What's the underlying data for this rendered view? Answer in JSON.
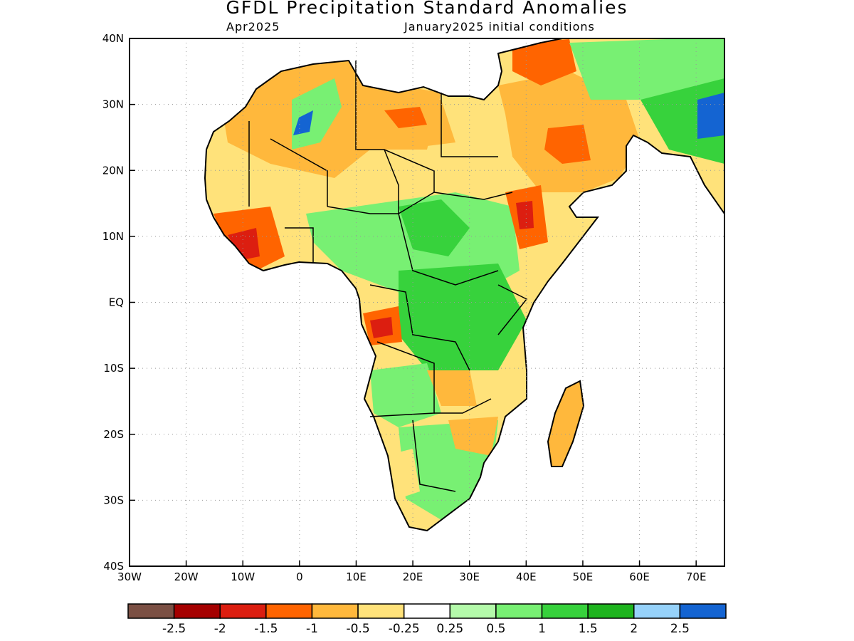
{
  "title": "GFDL Precipitation Standard Anomalies",
  "subtitle_left": "Apr2025",
  "subtitle_right": "January2025 initial conditions",
  "map": {
    "lon_range": [
      -30,
      75
    ],
    "lat_range": [
      -40,
      40
    ],
    "x_ticks": [
      {
        "lon": -30,
        "label": "30W"
      },
      {
        "lon": -20,
        "label": "20W"
      },
      {
        "lon": -10,
        "label": "10W"
      },
      {
        "lon": 0,
        "label": "0"
      },
      {
        "lon": 10,
        "label": "10E"
      },
      {
        "lon": 20,
        "label": "20E"
      },
      {
        "lon": 30,
        "label": "30E"
      },
      {
        "lon": 40,
        "label": "40E"
      },
      {
        "lon": 50,
        "label": "50E"
      },
      {
        "lon": 60,
        "label": "60E"
      },
      {
        "lon": 70,
        "label": "70E"
      }
    ],
    "y_ticks": [
      {
        "lat": 40,
        "label": "40N"
      },
      {
        "lat": 30,
        "label": "30N"
      },
      {
        "lat": 20,
        "label": "20N"
      },
      {
        "lat": 10,
        "label": "10N"
      },
      {
        "lat": 0,
        "label": "EQ"
      },
      {
        "lat": -10,
        "label": "10S"
      },
      {
        "lat": -20,
        "label": "20S"
      },
      {
        "lat": -30,
        "label": "30S"
      },
      {
        "lat": -40,
        "label": "40S"
      }
    ],
    "grid": "dotted"
  },
  "colorbar": {
    "colors": [
      "#7b5044",
      "#a50000",
      "#dc1e10",
      "#ff6400",
      "#ffb83c",
      "#ffe27a",
      "#ffffff",
      "#b4faaa",
      "#78f073",
      "#37d23c",
      "#1eb41e",
      "#96d2fa",
      "#1464d2"
    ],
    "labels": [
      "-2.5",
      "-2",
      "-1.5",
      "-1",
      "-0.5",
      "-0.25",
      "0.25",
      "0.5",
      "1",
      "1.5",
      "2",
      "2.5"
    ]
  }
}
